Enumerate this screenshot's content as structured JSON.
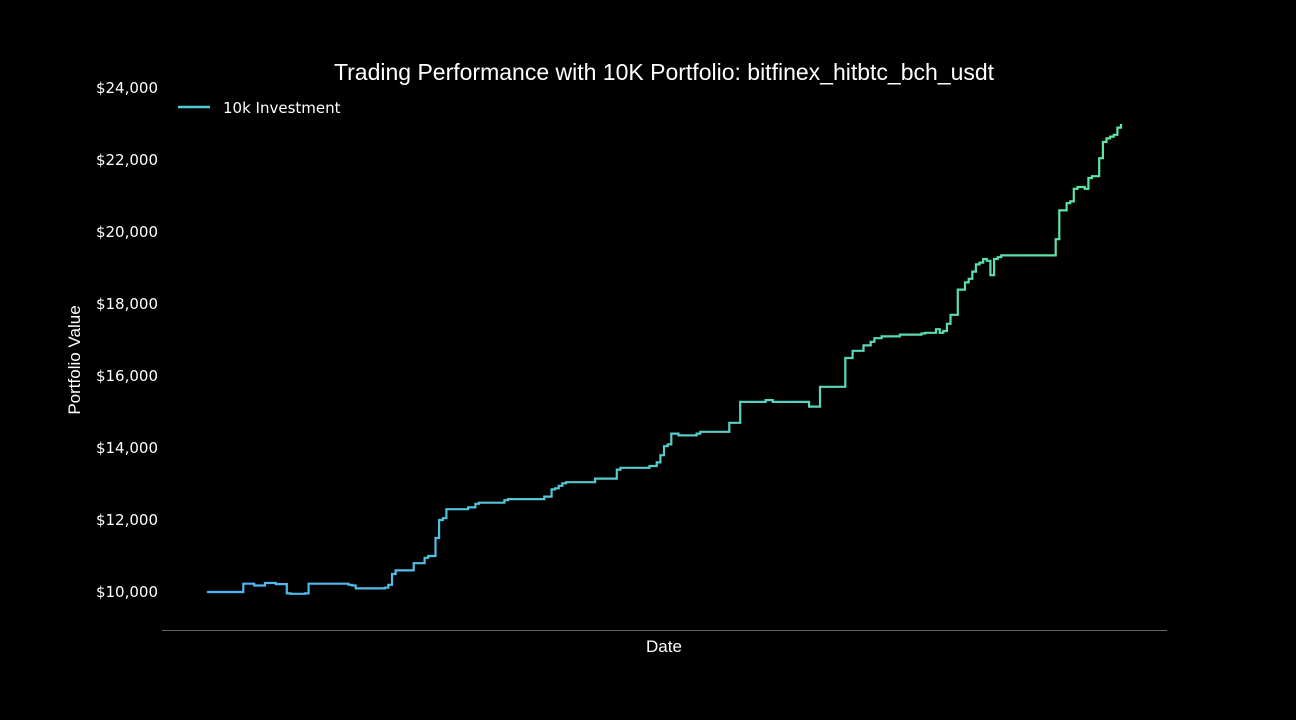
{
  "chart_data": {
    "type": "line",
    "title": "Trading Performance with 10K Portfolio: bitfinex_hitbtc_bch_usdt",
    "xlabel": "Date",
    "ylabel": "Portfolio Value",
    "ylim": [
      9000,
      24000
    ],
    "yticks": [
      10000,
      12000,
      14000,
      16000,
      18000,
      20000,
      22000,
      24000
    ],
    "ytick_labels": [
      "$10,000",
      "$12,000",
      "$14,000",
      "$16,000",
      "$18,000",
      "$20,000",
      "$22,000",
      "$24,000"
    ],
    "xticks_visible": false,
    "grid": false,
    "legend_position": "top-left",
    "colors": {
      "background": "#000000",
      "line_start": "#4fb3f5",
      "line_end": "#5ee6a0",
      "axis": "#666666"
    },
    "series": [
      {
        "name": "10k Investment",
        "values": [
          10000,
          10000,
          10000,
          10000,
          10000,
          10000,
          10000,
          10000,
          10000,
          10000,
          10230,
          10230,
          10230,
          10180,
          10180,
          10180,
          10250,
          10250,
          10250,
          10220,
          10220,
          10220,
          9960,
          9950,
          9950,
          9950,
          9950,
          9960,
          10230,
          10230,
          10230,
          10230,
          10230,
          10230,
          10230,
          10230,
          10230,
          10230,
          10230,
          10200,
          10180,
          10100,
          10100,
          10100,
          10100,
          10100,
          10100,
          10100,
          10100,
          10120,
          10200,
          10500,
          10600,
          10600,
          10600,
          10600,
          10600,
          10800,
          10800,
          10800,
          10950,
          11000,
          11000,
          11500,
          12000,
          12050,
          12300,
          12300,
          12300,
          12300,
          12300,
          12300,
          12350,
          12350,
          12450,
          12480,
          12480,
          12480,
          12480,
          12480,
          12480,
          12480,
          12550,
          12580,
          12580,
          12580,
          12580,
          12580,
          12580,
          12580,
          12580,
          12580,
          12580,
          12650,
          12650,
          12850,
          12880,
          12950,
          13020,
          13050,
          13050,
          13050,
          13050,
          13050,
          13050,
          13050,
          13050,
          13150,
          13150,
          13150,
          13150,
          13150,
          13150,
          13400,
          13450,
          13450,
          13450,
          13450,
          13450,
          13450,
          13450,
          13450,
          13500,
          13500,
          13600,
          13800,
          14050,
          14100,
          14400,
          14400,
          14350,
          14350,
          14350,
          14350,
          14350,
          14400,
          14450,
          14450,
          14450,
          14450,
          14450,
          14450,
          14450,
          14450,
          14700,
          14700,
          14700,
          15280,
          15280,
          15280,
          15280,
          15280,
          15280,
          15280,
          15330,
          15330,
          15280,
          15280,
          15280,
          15280,
          15280,
          15280,
          15280,
          15280,
          15280,
          15280,
          15150,
          15150,
          15150,
          15700,
          15700,
          15700,
          15700,
          15700,
          15700,
          15700,
          16500,
          16500,
          16700,
          16700,
          16700,
          16850,
          16850,
          16950,
          17050,
          17050,
          17100,
          17100,
          17100,
          17100,
          17100,
          17150,
          17150,
          17150,
          17150,
          17150,
          17150,
          17180,
          17200,
          17200,
          17200,
          17300,
          17200,
          17250,
          17450,
          17700,
          17700,
          18400,
          18400,
          18600,
          18700,
          18900,
          19100,
          19150,
          19250,
          19200,
          18800,
          19250,
          19300,
          19350,
          19350,
          19350,
          19350,
          19350,
          19350,
          19350,
          19350,
          19350,
          19350,
          19350,
          19350,
          19350,
          19350,
          19350,
          19800,
          20600,
          20600,
          20800,
          20850,
          21200,
          21250,
          21250,
          21200,
          21500,
          21550,
          21550,
          22050,
          22500,
          22600,
          22650,
          22700,
          22900,
          23000
        ]
      }
    ]
  }
}
